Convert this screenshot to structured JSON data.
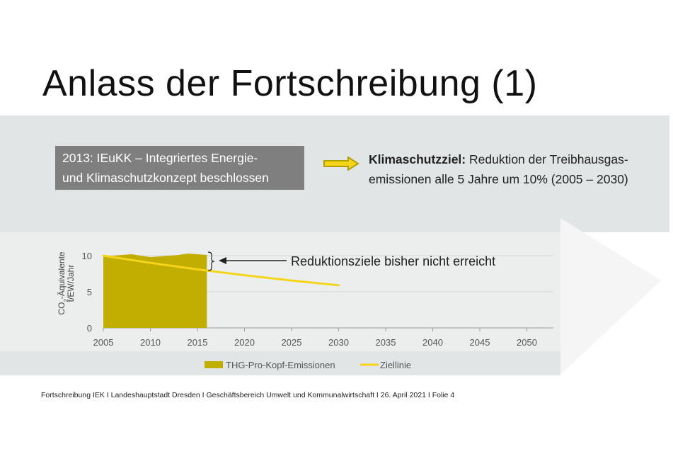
{
  "slide": {
    "title": "Anlass der Fortschreibung (1)",
    "box_line1": "2013: IEuKK – Integriertes Energie-",
    "box_line2": "und Klimaschutzkonzept beschlossen",
    "goal_bold": "Klimaschutzziel:",
    "goal_line1_rest": " Reduktion der Treibhausgas-",
    "goal_line2": "emissionen alle 5 Jahre um 10% (2005 – 2030)",
    "footer": "Fortschreibung IEK I Landeshauptstadt Dresden I Geschäftsbereich Umwelt und Kommunalwirtschaft I 26. April 2021 I Folie 4"
  },
  "colors": {
    "band": "#e2e5e5",
    "area": "#c2ae00",
    "line": "#f5d51c",
    "box": "#7f7f7f",
    "plot_bg": "#eceeed",
    "arrow_bg": "#f4f5f4"
  },
  "chart_data": {
    "type": "area",
    "ylabel_line1": "CO",
    "ylabel_sub": "2",
    "ylabel_line1_rest": "-Äquivalente",
    "ylabel_line2": "t/EW/Jahr",
    "xlim": [
      2005,
      2053
    ],
    "ylim": [
      0,
      10
    ],
    "x_ticks": [
      "2005",
      "2010",
      "2015",
      "2020",
      "2025",
      "2030",
      "2035",
      "2040",
      "2045",
      "2050"
    ],
    "y_ticks": [
      "0",
      "5",
      "10"
    ],
    "annotation": "Reduktionsziele bisher nicht erreicht",
    "series": [
      {
        "name": "THG-Pro-Kopf-Emissionen",
        "type": "area",
        "x": [
          2005,
          2006,
          2007,
          2008,
          2009,
          2010,
          2011,
          2012,
          2013,
          2014,
          2015,
          2016
        ],
        "y": [
          9.9,
          10.0,
          10.1,
          10.2,
          10.0,
          9.8,
          9.9,
          10.0,
          10.1,
          10.3,
          10.2,
          10.1
        ]
      },
      {
        "name": "Ziellinie",
        "type": "line",
        "x": [
          2005,
          2010,
          2015,
          2020,
          2025,
          2030
        ],
        "y": [
          10.0,
          9.0,
          8.1,
          7.29,
          6.56,
          5.9
        ]
      }
    ],
    "legend_position": "bottom"
  }
}
